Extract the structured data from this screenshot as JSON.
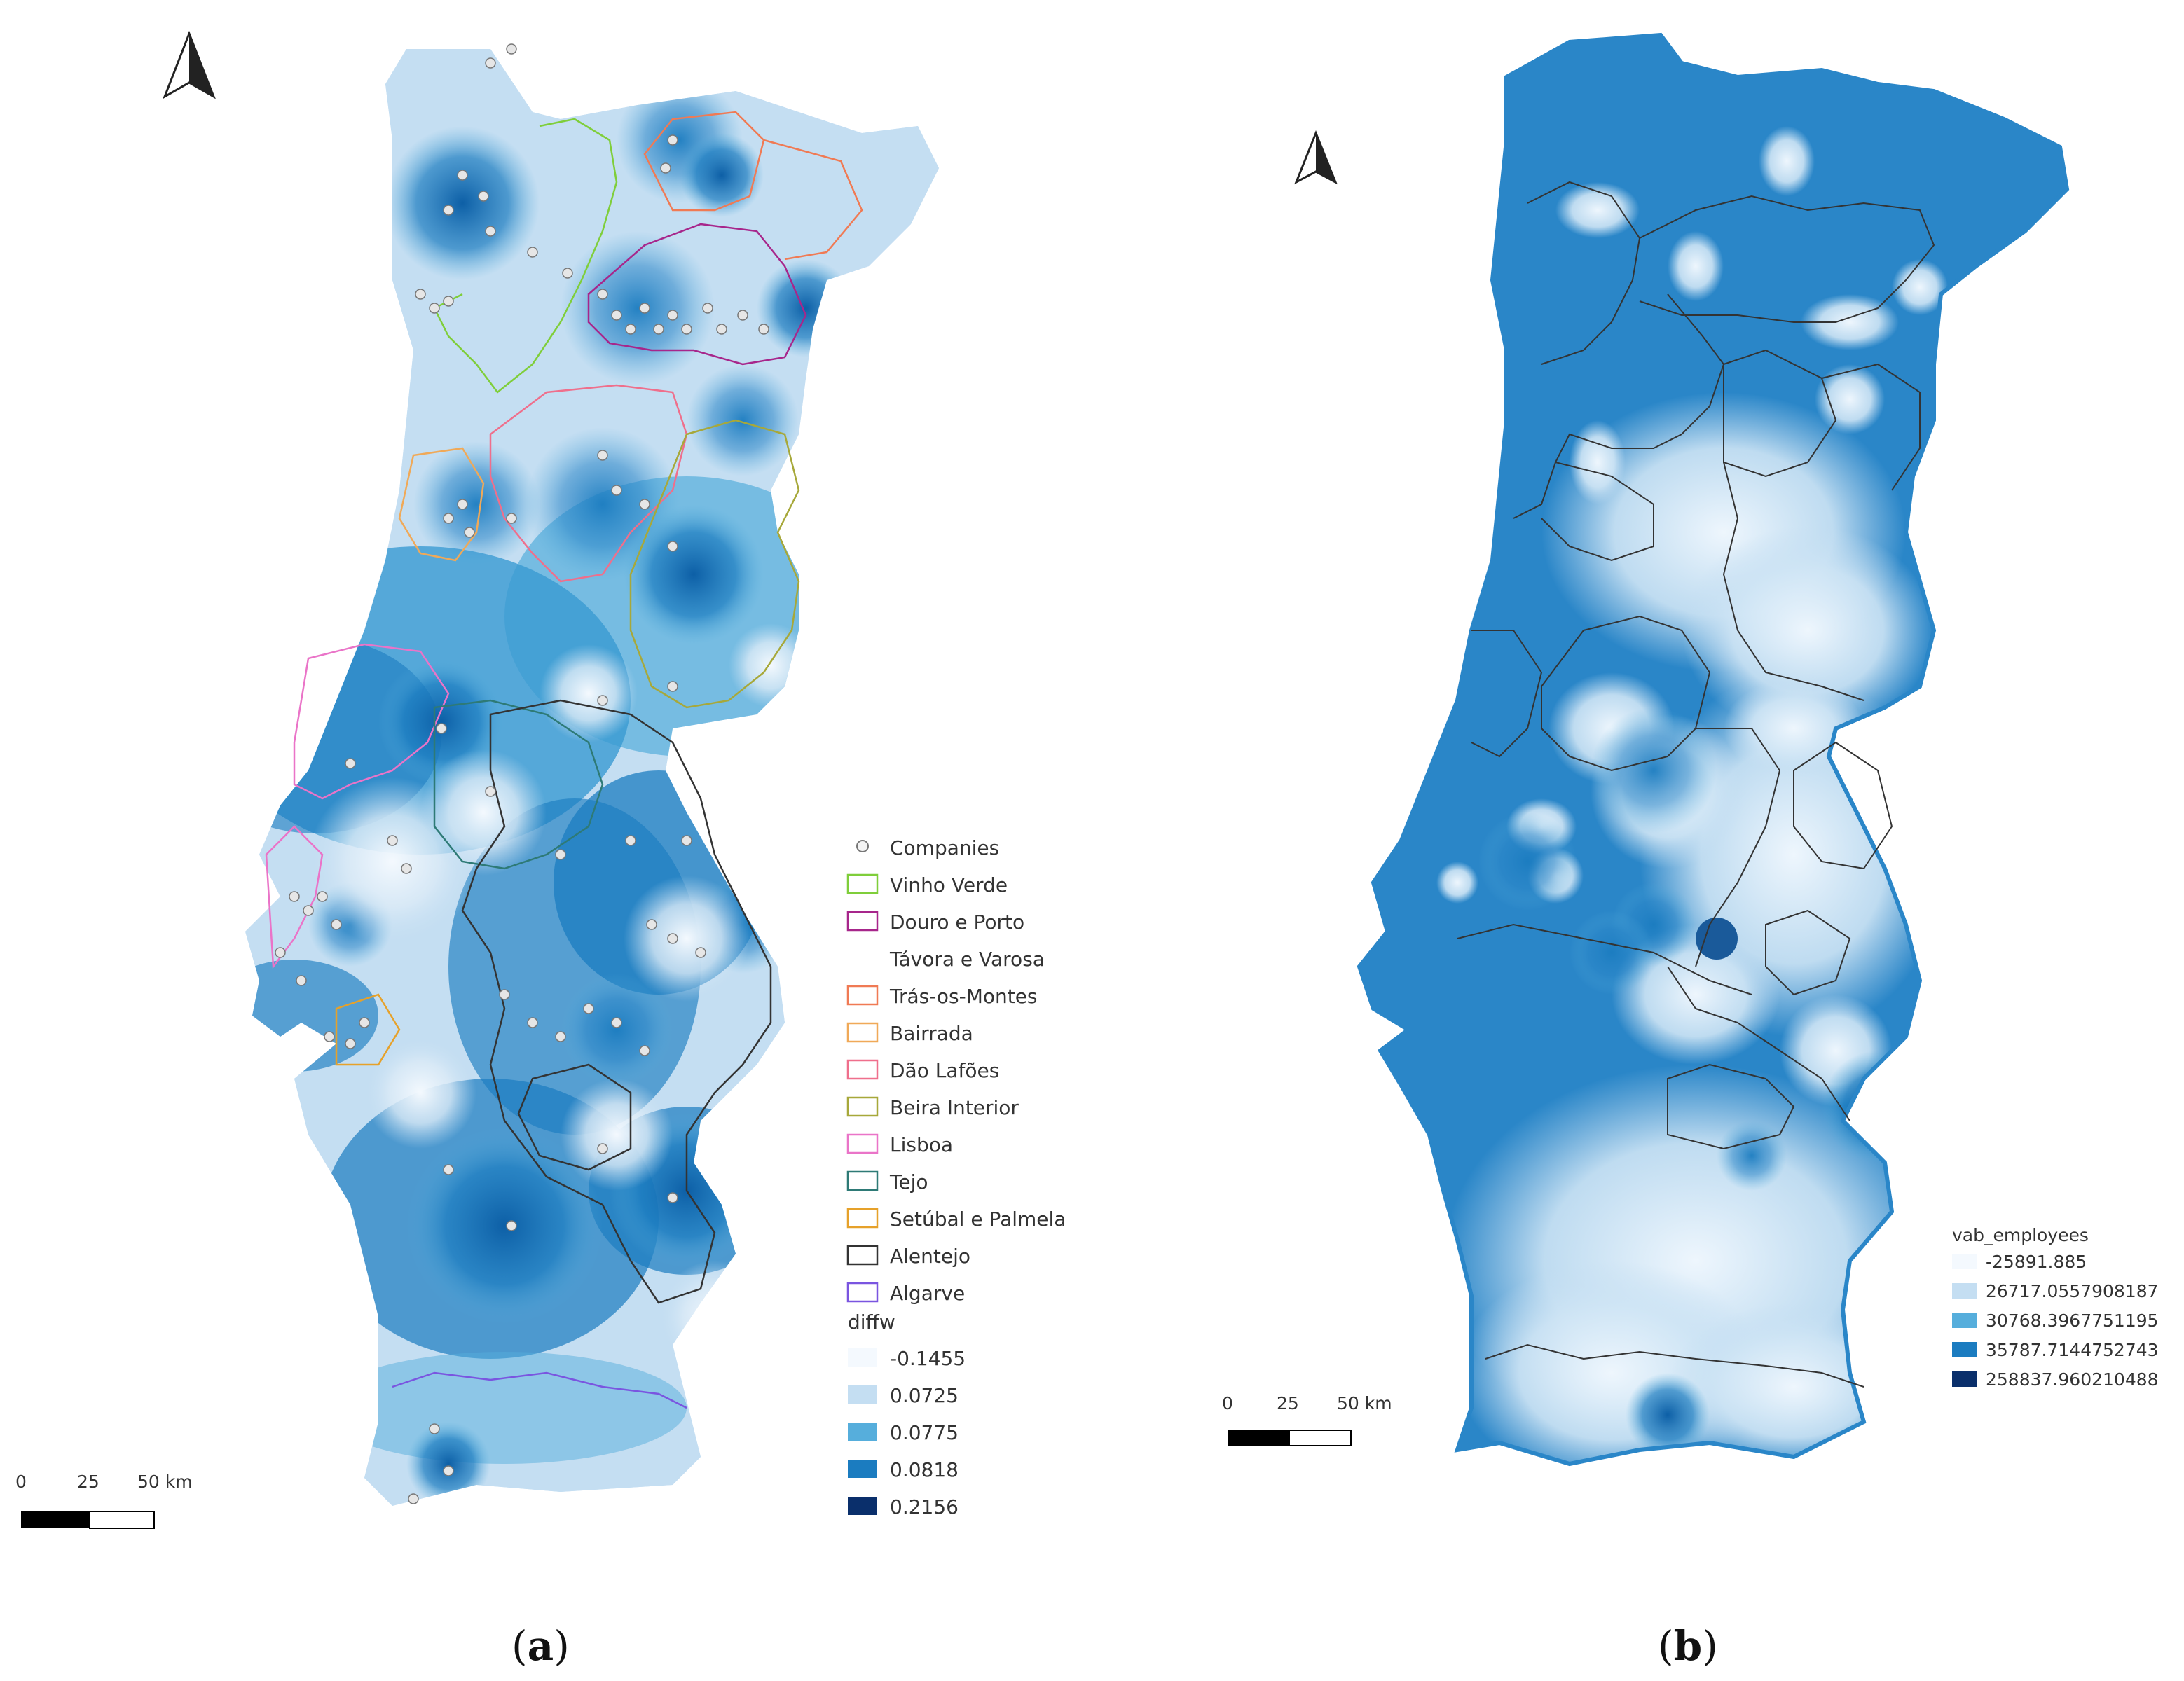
{
  "panel_a": {
    "caption_open": "(",
    "caption_letter": "a",
    "caption_close": ")",
    "legend": [
      {
        "label": "Companies",
        "color": "#ffffff",
        "kind": "point"
      },
      {
        "label": "Vinho Verde",
        "color": "#7fce3a"
      },
      {
        "label": "Douro e Porto",
        "color": "#a7268b"
      },
      {
        "label": "Távora e Varosa",
        "color": ""
      },
      {
        "label": "Trás-os-Montes",
        "color": "#f07a54"
      },
      {
        "label": "Bairrada",
        "color": "#f0a958"
      },
      {
        "label": "Dão Lafões",
        "color": "#ef6f8c"
      },
      {
        "label": "Beira Interior",
        "color": "#a7a83a"
      },
      {
        "label": "Lisboa",
        "color": "#ea74c8"
      },
      {
        "label": "Tejo",
        "color": "#2e7a76"
      },
      {
        "label": "Setúbal e Palmela",
        "color": "#e6a12a"
      },
      {
        "label": "Alentejo",
        "color": "#333333"
      },
      {
        "label": "Algarve",
        "color": "#7a55e0"
      }
    ],
    "ramp_title": "diffw",
    "ramp": [
      {
        "label": "-0.1455",
        "color": "#f4f9fe"
      },
      {
        "label": "0.0725",
        "color": "#c4def2"
      },
      {
        "label": "0.0775",
        "color": "#56aedc"
      },
      {
        "label": "0.0818",
        "color": "#1b7cc0"
      },
      {
        "label": "0.2156",
        "color": "#0a2f6b"
      }
    ],
    "scale": {
      "t0": "0",
      "t1": "25",
      "t2": "50 km"
    }
  },
  "panel_b": {
    "caption_open": "(",
    "caption_letter": "b",
    "caption_close": ")",
    "ramp_title": "vab_employees",
    "ramp": [
      {
        "label": "-25891.885",
        "color": "#f4f9fe"
      },
      {
        "label": "26717.0557908187",
        "color": "#c4def2"
      },
      {
        "label": "30768.3967751195",
        "color": "#56aedc"
      },
      {
        "label": "35787.7144752743",
        "color": "#1b7cc0"
      },
      {
        "label": "258837.960210488",
        "color": "#0a2f6b"
      }
    ],
    "scale": {
      "t0": "0",
      "t1": "25",
      "t2": "50 km"
    }
  },
  "colors": {
    "light": "#c4def2",
    "mid": "#56aedc",
    "dark": "#1b7cc0",
    "navy": "#0a2f6b",
    "outline": "#2a86c8"
  },
  "icons": [
    "north-arrow-icon",
    "north-arrow-icon"
  ]
}
